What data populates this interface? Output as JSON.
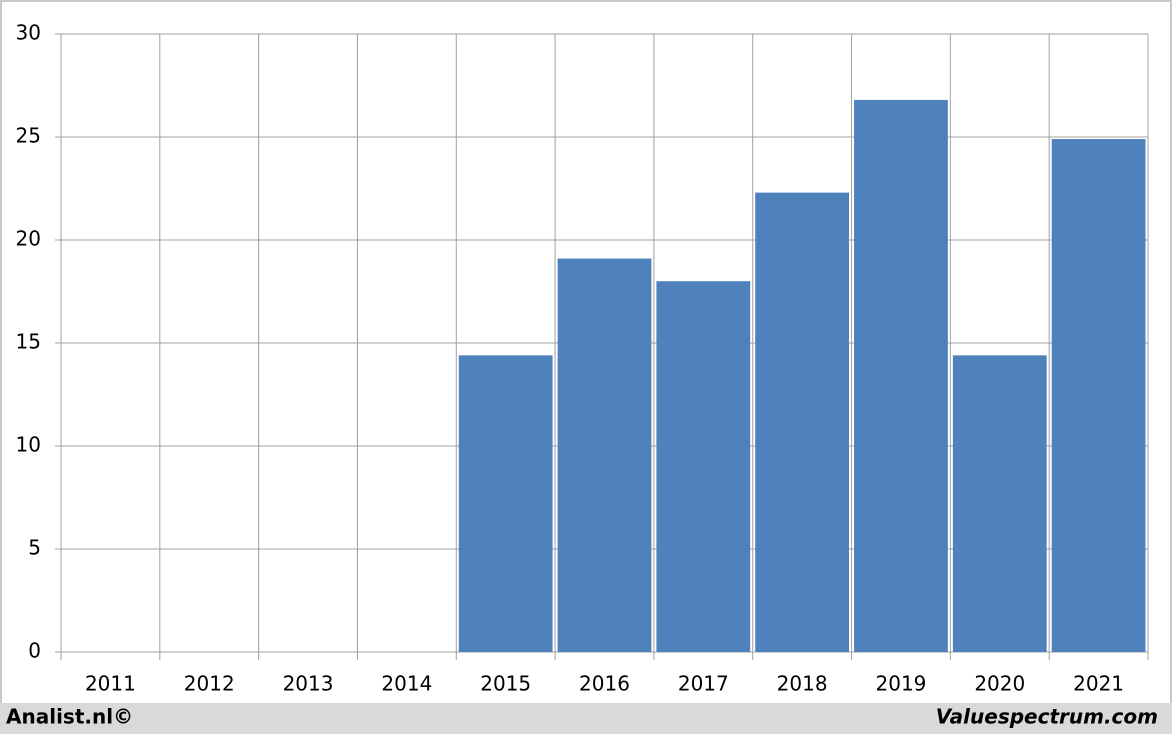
{
  "chart_data": {
    "type": "bar",
    "categories": [
      "2011",
      "2012",
      "2013",
      "2014",
      "2015",
      "2016",
      "2017",
      "2018",
      "2019",
      "2020",
      "2021"
    ],
    "values": [
      null,
      null,
      null,
      null,
      14.4,
      19.1,
      18.0,
      22.3,
      26.8,
      14.4,
      24.9
    ],
    "color": "#4f81bd",
    "ylim": [
      0,
      30
    ],
    "yticks": [
      0,
      5,
      10,
      15,
      20,
      25,
      30
    ],
    "grid": true,
    "footer_left": "Analist.nl©",
    "footer_right": "Valuespectrum.com"
  }
}
